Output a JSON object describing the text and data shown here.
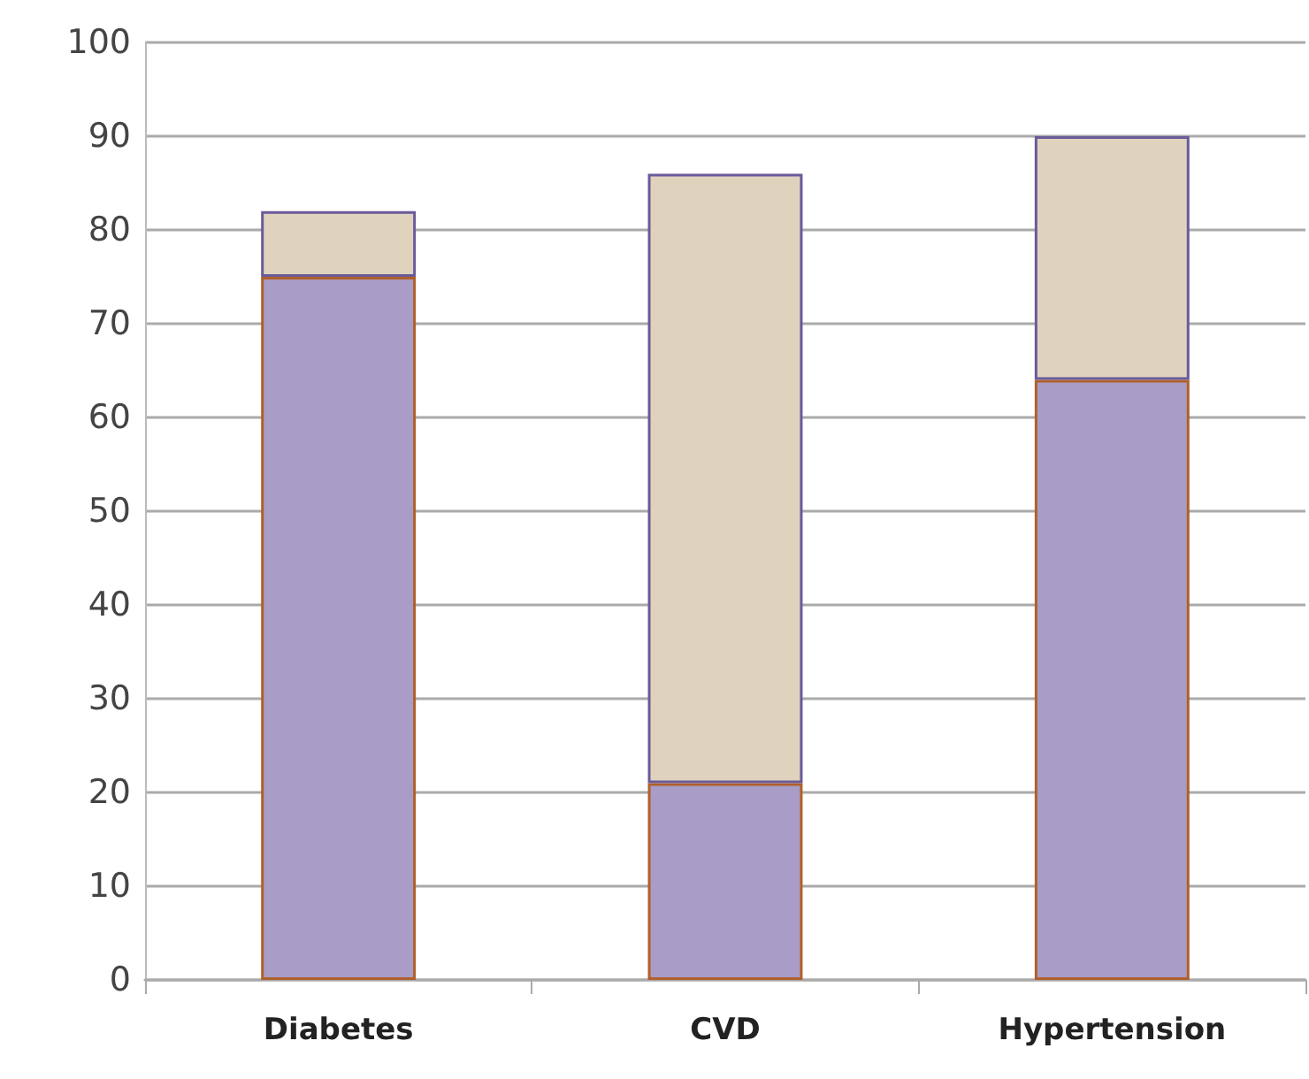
{
  "chart_data": {
    "type": "bar",
    "stacked": true,
    "categories": [
      "Diabetes",
      "CVD",
      "Hypertension"
    ],
    "series": [
      {
        "color": "#a99cc6",
        "values": [
          75,
          21,
          64
        ]
      },
      {
        "color": "#e0d3be",
        "values": [
          7,
          65,
          26
        ]
      }
    ],
    "ylim": [
      0,
      100
    ],
    "yticks": [
      0,
      10,
      20,
      30,
      40,
      50,
      60,
      70,
      80,
      90,
      100
    ],
    "grid": "y"
  }
}
